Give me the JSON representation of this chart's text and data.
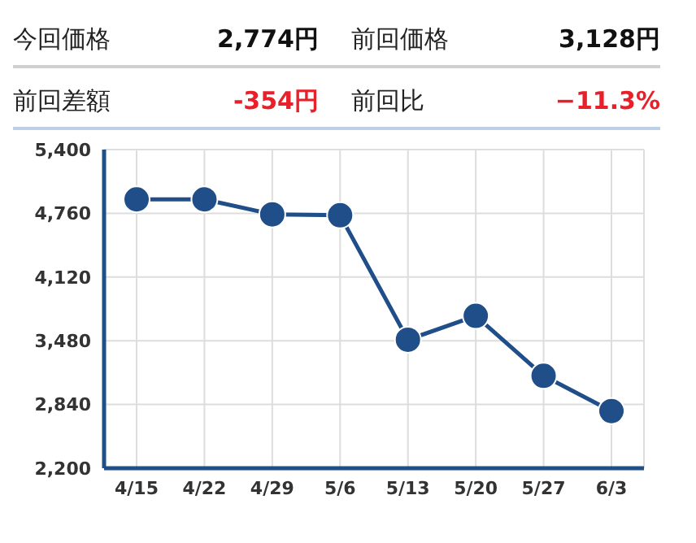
{
  "chart_data": {
    "type": "line",
    "annotations": [
      "今回価格",
      "2,774円",
      "前回価格",
      "3,128円",
      "前回差額",
      "-354円",
      "前回比",
      "−11.3%"
    ],
    "categories": [
      "4/15",
      "4/22",
      "4/29",
      "5/6",
      "5/13",
      "5/20",
      "5/27",
      "6/3"
    ],
    "series": [
      {
        "color": "#1f4e89",
        "values": [
          4900,
          4900,
          4750,
          4740,
          3490,
          3730,
          3128,
          2774
        ]
      }
    ],
    "ylim": [
      2200,
      5400
    ],
    "yticks": [
      {
        "value": 2200,
        "label": "2,200"
      },
      {
        "value": 2840,
        "label": "2,840"
      },
      {
        "value": 3480,
        "label": "3,480"
      },
      {
        "value": 4120,
        "label": "4,120"
      },
      {
        "value": 4760,
        "label": "4,760"
      },
      {
        "value": 5400,
        "label": "5,400"
      }
    ],
    "grid": true,
    "marker": "circle",
    "line_style": "solid"
  }
}
